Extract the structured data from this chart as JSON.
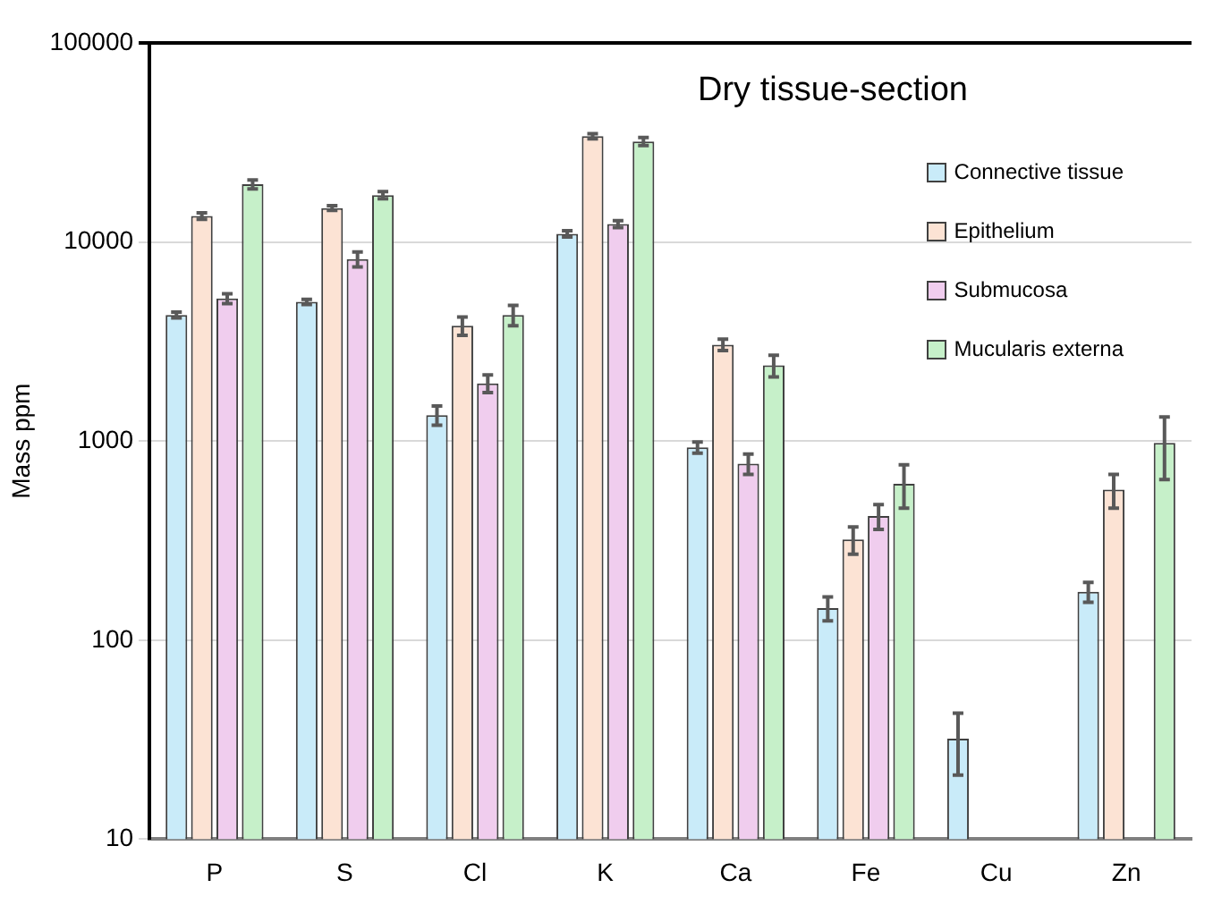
{
  "chart_data": {
    "type": "bar",
    "title": "Dry tissue-section",
    "ylabel": "Mass ppm",
    "categories": [
      "P",
      "S",
      "Cl",
      "K",
      "Ca",
      "Fe",
      "Cu",
      "Zn"
    ],
    "series": [
      {
        "name": "Connective tissue",
        "color": "#c9ebf9",
        "values": [
          4300,
          5000,
          1350,
          11000,
          930,
          145,
          32,
          175
        ],
        "errors": [
          150,
          150,
          150,
          400,
          60,
          20,
          11,
          20
        ]
      },
      {
        "name": "Epithelium",
        "color": "#fce3d4",
        "values": [
          13500,
          14800,
          3800,
          34000,
          3050,
          320,
          null,
          570
        ],
        "errors": [
          500,
          400,
          400,
          1000,
          200,
          50,
          null,
          110
        ]
      },
      {
        "name": "Submucosa",
        "color": "#f0cdee",
        "values": [
          5200,
          8200,
          1950,
          12300,
          770,
          420,
          null,
          null
        ],
        "errors": [
          300,
          700,
          200,
          500,
          90,
          60,
          null,
          null
        ]
      },
      {
        "name": "Mucularis externa",
        "color": "#c6f0c9",
        "values": [
          19500,
          17200,
          4300,
          32000,
          2400,
          610,
          null,
          980
        ],
        "errors": [
          1000,
          700,
          500,
          1500,
          300,
          150,
          null,
          340
        ]
      }
    ],
    "log": true,
    "ylim": [
      10,
      100000
    ],
    "yticks": [
      10,
      100,
      1000,
      10000,
      100000
    ],
    "grid": "y",
    "legend": "top right"
  }
}
